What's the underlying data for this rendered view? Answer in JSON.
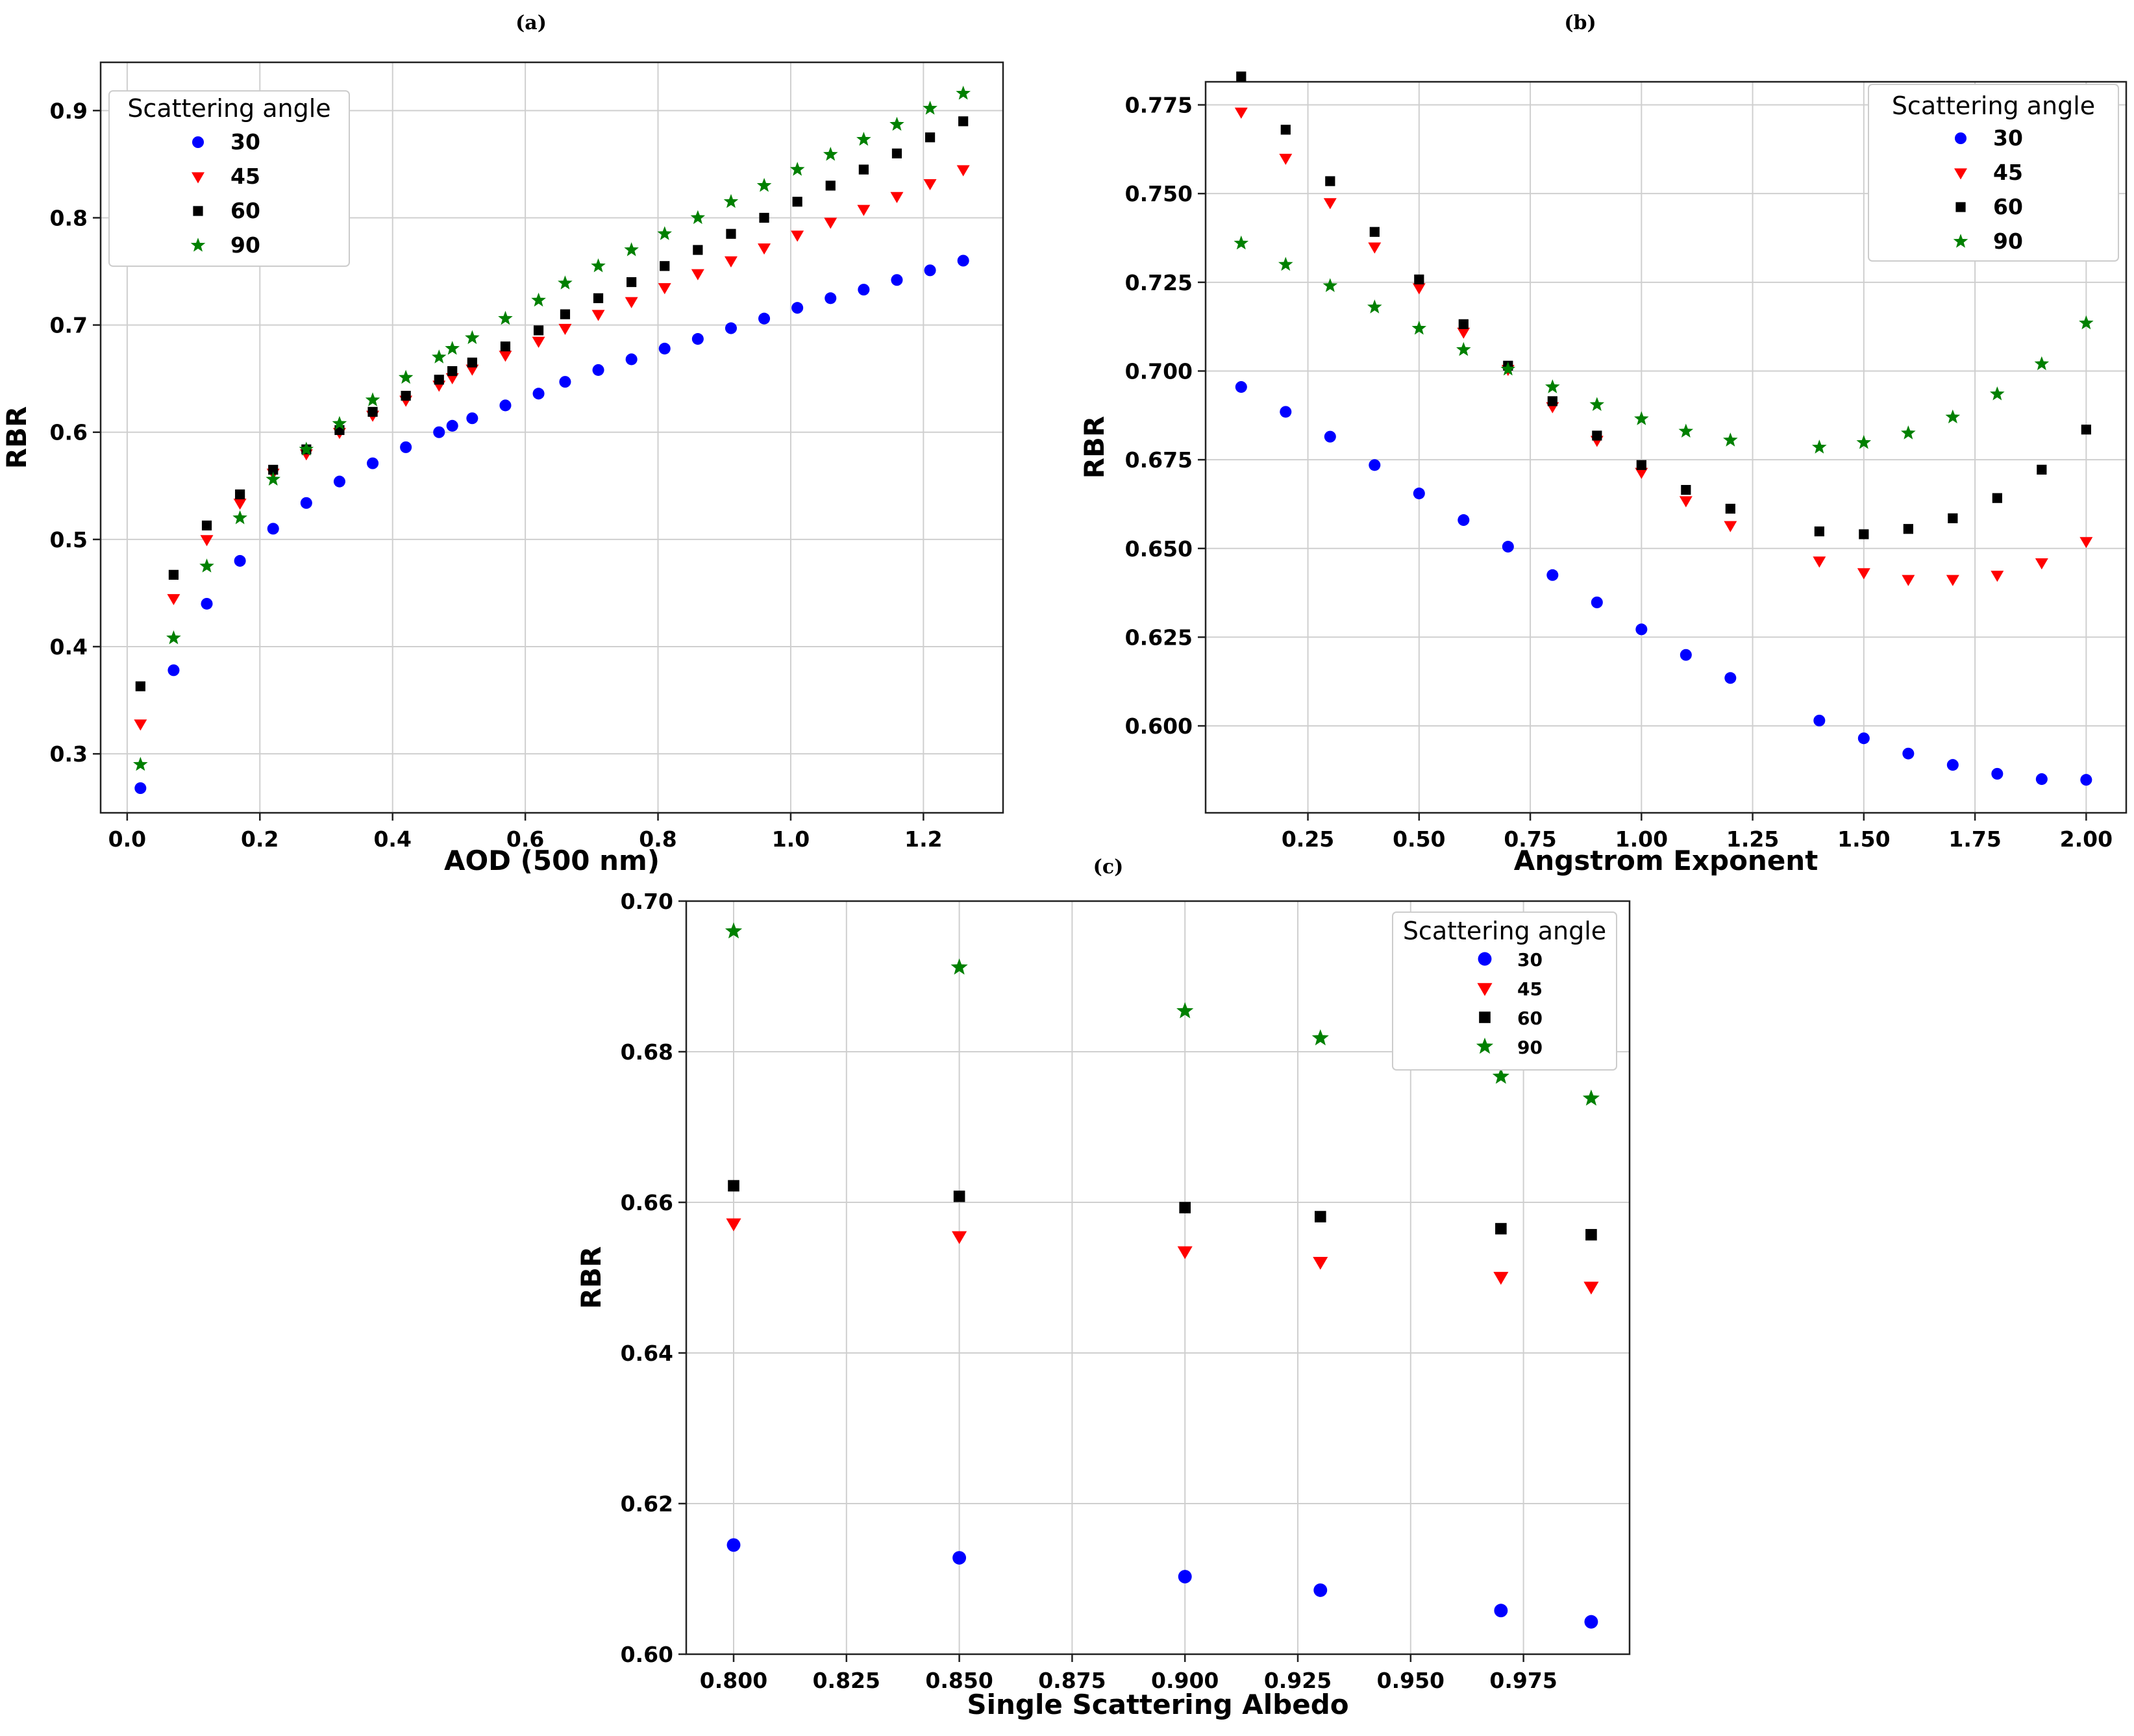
{
  "colors": {
    "s30": "#0000ff",
    "s45": "#ff0000",
    "s60": "#000000",
    "s90": "#008000"
  },
  "chart_data": [
    {
      "id": "a",
      "type": "scatter",
      "panel_label": "(a)",
      "xlabel": "AOD (500 nm)",
      "ylabel": "RBR",
      "xlim": [
        -0.04,
        1.32
      ],
      "ylim": [
        0.245,
        0.945
      ],
      "xticks": [
        0.0,
        0.2,
        0.4,
        0.6,
        0.8,
        1.0,
        1.2
      ],
      "xtick_labels": [
        "0.0",
        "0.2",
        "0.4",
        "0.6",
        "0.8",
        "1.0",
        "1.2"
      ],
      "yticks": [
        0.3,
        0.4,
        0.5,
        0.6,
        0.7,
        0.8,
        0.9
      ],
      "ytick_labels": [
        "0.3",
        "0.4",
        "0.5",
        "0.6",
        "0.7",
        "0.8",
        "0.9"
      ],
      "legend": {
        "title": "Scattering angle",
        "placement": "top-left"
      },
      "x": [
        0.02,
        0.07,
        0.12,
        0.17,
        0.22,
        0.27,
        0.32,
        0.37,
        0.42,
        0.47,
        0.49,
        0.52,
        0.57,
        0.62,
        0.66,
        0.71,
        0.76,
        0.81,
        0.86,
        0.91,
        0.96,
        1.01,
        1.06,
        1.11,
        1.16,
        1.21,
        1.26
      ],
      "series": [
        {
          "name": "30",
          "marker": "circle",
          "values": [
            0.268,
            0.378,
            0.44,
            0.48,
            0.51,
            0.534,
            0.554,
            0.571,
            0.586,
            0.6,
            0.606,
            0.613,
            0.625,
            0.636,
            0.647,
            0.658,
            0.668,
            0.678,
            0.687,
            0.697,
            0.706,
            0.716,
            0.725,
            0.733,
            0.742,
            0.751,
            0.76
          ]
        },
        {
          "name": "45",
          "marker": "triangle",
          "values": [
            0.328,
            0.445,
            0.5,
            0.534,
            0.562,
            0.58,
            0.6,
            0.616,
            0.63,
            0.644,
            0.651,
            0.659,
            0.672,
            0.685,
            0.697,
            0.71,
            0.722,
            0.735,
            0.748,
            0.76,
            0.772,
            0.784,
            0.796,
            0.808,
            0.82,
            0.832,
            0.845
          ]
        },
        {
          "name": "60",
          "marker": "square",
          "values": [
            0.363,
            0.467,
            0.513,
            0.542,
            0.565,
            0.584,
            0.602,
            0.619,
            0.634,
            0.649,
            0.657,
            0.665,
            0.68,
            0.695,
            0.71,
            0.725,
            0.74,
            0.755,
            0.77,
            0.785,
            0.8,
            0.815,
            0.83,
            0.845,
            0.86,
            0.875,
            0.89
          ]
        },
        {
          "name": "90",
          "marker": "star",
          "values": [
            0.29,
            0.408,
            0.475,
            0.52,
            0.556,
            0.584,
            0.608,
            0.63,
            0.651,
            0.67,
            0.678,
            0.688,
            0.706,
            0.723,
            0.739,
            0.755,
            0.77,
            0.785,
            0.8,
            0.815,
            0.83,
            0.845,
            0.859,
            0.873,
            0.887,
            0.902,
            0.916
          ]
        }
      ]
    },
    {
      "id": "b",
      "type": "scatter",
      "panel_label": "(b)",
      "xlabel": "Angstrom Exponent",
      "ylabel": "RBR",
      "xlim": [
        0.02,
        2.09
      ],
      "ylim": [
        0.5755,
        0.7815
      ],
      "xticks": [
        0.25,
        0.5,
        0.75,
        1.0,
        1.25,
        1.5,
        1.75,
        2.0
      ],
      "xtick_labels": [
        "0.25",
        "0.50",
        "0.75",
        "1.00",
        "1.25",
        "1.50",
        "1.75",
        "2.00"
      ],
      "yticks": [
        0.6,
        0.625,
        0.65,
        0.675,
        0.7,
        0.725,
        0.75,
        0.775
      ],
      "ytick_labels": [
        "0.600",
        "0.625",
        "0.650",
        "0.675",
        "0.700",
        "0.725",
        "0.750",
        "0.775"
      ],
      "legend": {
        "title": "Scattering angle",
        "placement": "top-right"
      },
      "x": [
        0.1,
        0.2,
        0.3,
        0.4,
        0.5,
        0.6,
        0.7,
        0.8,
        0.9,
        1.0,
        1.1,
        1.2,
        1.4,
        1.5,
        1.6,
        1.7,
        1.8,
        1.9,
        2.0
      ],
      "series": [
        {
          "name": "30",
          "marker": "circle",
          "values": [
            0.6955,
            0.6885,
            0.6815,
            0.6735,
            0.6655,
            0.658,
            0.6505,
            0.6425,
            0.6348,
            0.6272,
            0.62,
            0.6135,
            0.6015,
            0.5965,
            0.5922,
            0.589,
            0.5865,
            0.585,
            0.5848
          ]
        },
        {
          "name": "45",
          "marker": "triangle",
          "values": [
            0.773,
            0.76,
            0.7475,
            0.735,
            0.7235,
            0.711,
            0.7005,
            0.69,
            0.6805,
            0.6715,
            0.6635,
            0.6565,
            0.6465,
            0.6432,
            0.6413,
            0.6413,
            0.6425,
            0.646,
            0.652
          ]
        },
        {
          "name": "60",
          "marker": "square",
          "values": [
            0.783,
            0.768,
            0.7535,
            0.7392,
            0.7258,
            0.7132,
            0.7015,
            0.6915,
            0.6818,
            0.6735,
            0.6665,
            0.6612,
            0.6548,
            0.654,
            0.6555,
            0.6585,
            0.6642,
            0.6722,
            0.6835
          ]
        },
        {
          "name": "90",
          "marker": "star",
          "values": [
            0.736,
            0.73,
            0.724,
            0.718,
            0.712,
            0.706,
            0.7005,
            0.6955,
            0.6905,
            0.6865,
            0.683,
            0.6805,
            0.6785,
            0.6798,
            0.6825,
            0.687,
            0.6935,
            0.702,
            0.7135
          ]
        }
      ]
    },
    {
      "id": "c",
      "type": "scatter",
      "panel_label": "(c)",
      "xlabel": "Single Scattering Albedo",
      "ylabel": "RBR",
      "xlim": [
        0.7895,
        0.9985
      ],
      "ylim": [
        0.6,
        0.7
      ],
      "xticks": [
        0.8,
        0.825,
        0.85,
        0.875,
        0.9,
        0.925,
        0.95,
        0.975
      ],
      "xtick_labels": [
        "0.800",
        "0.825",
        "0.850",
        "0.875",
        "0.900",
        "0.925",
        "0.950",
        "0.975"
      ],
      "yticks": [
        0.6,
        0.62,
        0.64,
        0.66,
        0.68,
        0.7
      ],
      "ytick_labels": [
        "0.60",
        "0.62",
        "0.64",
        "0.66",
        "0.68",
        "0.70"
      ],
      "legend": {
        "title": "Scattering angle",
        "placement": "top-right"
      },
      "x": [
        0.8,
        0.85,
        0.9,
        0.93,
        0.97,
        0.99
      ],
      "series": [
        {
          "name": "30",
          "marker": "circle",
          "values": [
            0.6145,
            0.6128,
            0.6103,
            0.6085,
            0.6058,
            0.6043
          ]
        },
        {
          "name": "45",
          "marker": "triangle",
          "values": [
            0.6572,
            0.6555,
            0.6535,
            0.6521,
            0.6501,
            0.6488
          ]
        },
        {
          "name": "60",
          "marker": "square",
          "values": [
            0.6622,
            0.6608,
            0.6593,
            0.6581,
            0.6565,
            0.6557
          ]
        },
        {
          "name": "90",
          "marker": "star",
          "values": [
            0.696,
            0.6912,
            0.6854,
            0.6818,
            0.6767,
            0.6738
          ]
        }
      ]
    }
  ]
}
